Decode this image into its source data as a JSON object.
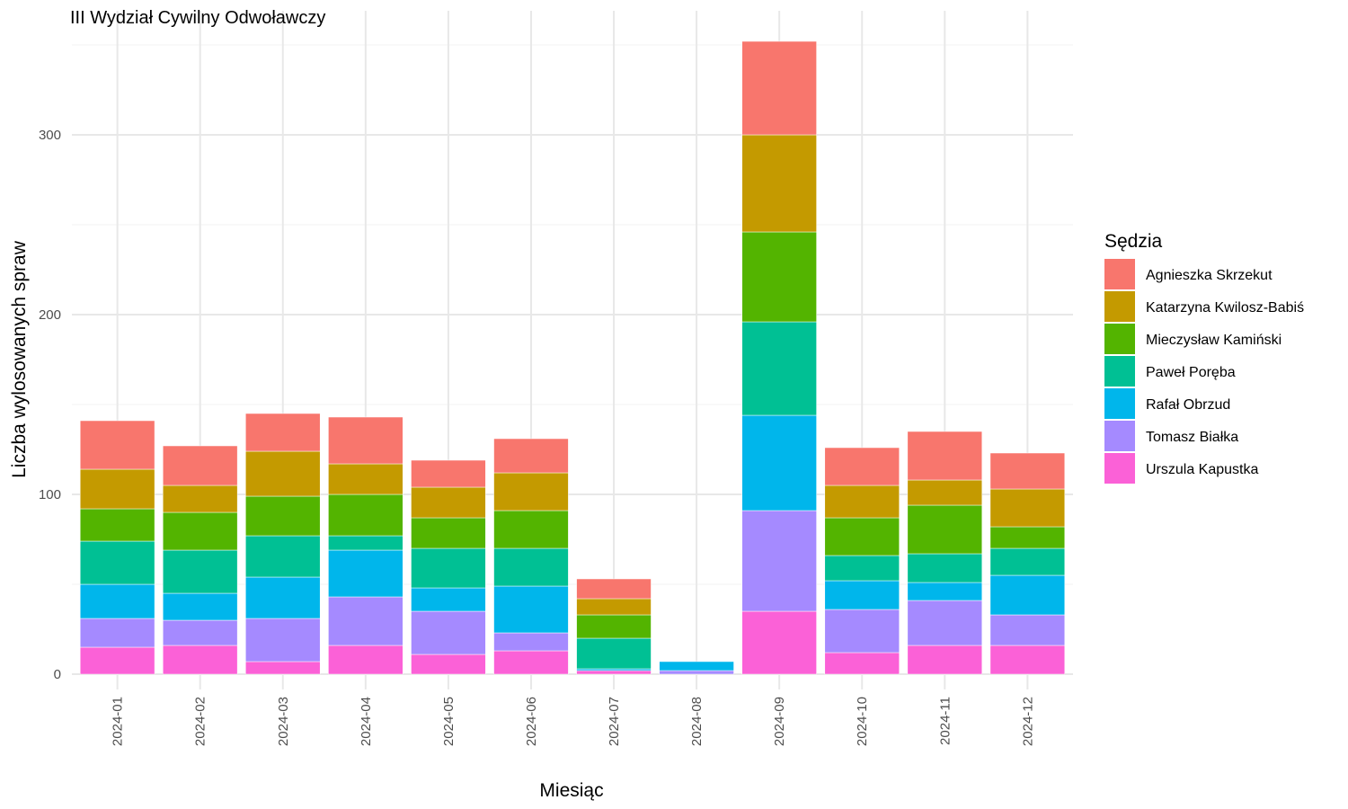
{
  "chart_data": {
    "type": "bar",
    "stacked": true,
    "title": "III Wydział Cywilny Odwoławczy",
    "xlabel": "Miesiąc",
    "ylabel": "Liczba wylosowanych spraw",
    "ylim": [
      0,
      360
    ],
    "yticks": [
      0,
      100,
      200,
      300
    ],
    "grid": true,
    "legend_position": "right",
    "legend_title": "Sędzia",
    "categories": [
      "2024-01",
      "2024-02",
      "2024-03",
      "2024-04",
      "2024-05",
      "2024-06",
      "2024-07",
      "2024-08",
      "2024-09",
      "2024-10",
      "2024-11",
      "2024-12"
    ],
    "series": [
      {
        "name": "Agnieszka Skrzekut",
        "color": "#F8766D",
        "values": [
          27,
          22,
          21,
          26,
          15,
          19,
          11,
          0,
          52,
          21,
          27,
          20
        ]
      },
      {
        "name": "Katarzyna Kwilosz-Babiś",
        "color": "#C49A00",
        "values": [
          22,
          15,
          25,
          17,
          17,
          21,
          9,
          0,
          54,
          18,
          14,
          21
        ]
      },
      {
        "name": "Mieczysław Kamiński",
        "color": "#53B400",
        "values": [
          18,
          21,
          22,
          23,
          17,
          21,
          13,
          0,
          50,
          21,
          27,
          12
        ]
      },
      {
        "name": "Paweł Poręba",
        "color": "#00C094",
        "values": [
          24,
          24,
          23,
          8,
          22,
          21,
          17,
          0,
          52,
          14,
          16,
          15
        ]
      },
      {
        "name": "Rafał Obrzud",
        "color": "#00B6EB",
        "values": [
          19,
          15,
          23,
          26,
          13,
          26,
          1,
          5,
          53,
          16,
          10,
          22
        ]
      },
      {
        "name": "Tomasz Białka",
        "color": "#A58AFF",
        "values": [
          16,
          14,
          24,
          27,
          24,
          10,
          0,
          2,
          56,
          24,
          25,
          17
        ]
      },
      {
        "name": "Urszula Kapustka",
        "color": "#FB61D7",
        "values": [
          15,
          16,
          7,
          16,
          11,
          13,
          2,
          0,
          35,
          12,
          16,
          16
        ]
      }
    ]
  }
}
